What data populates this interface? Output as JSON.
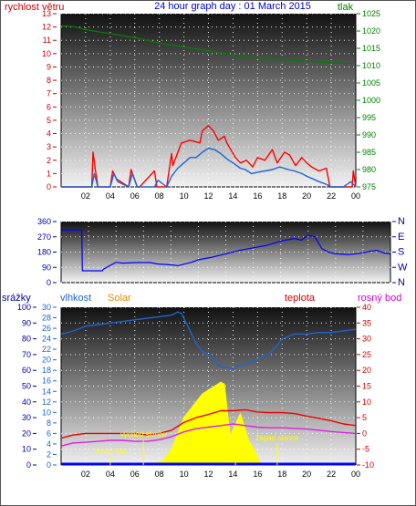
{
  "title": "24 hour graph day : 01 March 2015",
  "x_ticks": [
    "02",
    "04",
    "06",
    "08",
    "10",
    "12",
    "14",
    "16",
    "18",
    "20",
    "22",
    "00"
  ],
  "chart_data": [
    {
      "type": "line",
      "name": "wind-pressure",
      "left_label": "rychlost větru",
      "right_label": "tlak",
      "left_ticks": [
        "0",
        "1",
        "2",
        "3",
        "4",
        "5",
        "6",
        "7",
        "8",
        "9",
        "10",
        "11",
        "12",
        "13"
      ],
      "right_ticks": [
        "975",
        "980",
        "985",
        "990",
        "995",
        "1000",
        "1005",
        "1010",
        "1015",
        "1020",
        "1025"
      ],
      "left_range": [
        0,
        13
      ],
      "right_range": [
        975,
        1025
      ],
      "x_range": [
        0,
        24
      ],
      "series": [
        {
          "color": "#ff0000",
          "x": [
            0,
            2.5,
            2.6,
            2.8,
            3.0,
            4.0,
            4.2,
            4.5,
            5.5,
            5.7,
            6.2,
            6.4,
            7.6,
            7.8,
            8.6,
            9.0,
            9.1,
            9.8,
            10.5,
            11.3,
            11.5,
            12.0,
            12.4,
            12.8,
            13.3,
            13.5,
            14.2,
            14.6,
            15.1,
            15.6,
            16.0,
            16.6,
            17.2,
            17.6,
            18.2,
            18.6,
            19.1,
            19.6,
            20.0,
            20.4,
            21.0,
            21.6,
            21.9,
            22.2,
            23.0,
            23.7,
            23.8,
            24
          ],
          "values": [
            0,
            0,
            2.6,
            1.2,
            0,
            0,
            1.2,
            0.6,
            0,
            1.3,
            0,
            0,
            1.2,
            0,
            0,
            2.5,
            1.6,
            3.3,
            3.5,
            3.3,
            4.2,
            4.6,
            4.2,
            3.5,
            3.8,
            3.3,
            2.2,
            1.8,
            2.0,
            1.5,
            2.2,
            2.0,
            2.8,
            1.8,
            2.6,
            2.4,
            1.6,
            2.2,
            1.8,
            1.5,
            1.2,
            1.4,
            0,
            0,
            0,
            0,
            1.2,
            0
          ]
        },
        {
          "color": "#1e64d2",
          "x": [
            0,
            2.5,
            2.7,
            3.0,
            4.0,
            4.3,
            4.6,
            5.5,
            5.8,
            6.2,
            7.6,
            7.9,
            8.6,
            9.0,
            9.5,
            10.0,
            10.5,
            11.0,
            11.5,
            12.0,
            12.5,
            13.0,
            13.5,
            14.0,
            14.6,
            15.0,
            15.5,
            16.0,
            16.6,
            17.2,
            17.8,
            18.5,
            19.0,
            19.6,
            20.0,
            20.5,
            21.0,
            21.6,
            22.0,
            23.0,
            23.6,
            24
          ],
          "values": [
            0,
            0,
            1.0,
            0,
            0,
            1.0,
            0.4,
            0,
            1.0,
            0,
            0,
            0.5,
            0,
            0.8,
            1.4,
            1.8,
            2.2,
            2.2,
            2.6,
            2.9,
            2.8,
            2.5,
            2.1,
            1.8,
            1.4,
            1.3,
            1.0,
            1.1,
            1.2,
            1.3,
            1.5,
            1.3,
            1.2,
            1.0,
            0.8,
            0.6,
            0.4,
            0.2,
            0,
            0,
            0.4,
            0
          ]
        },
        {
          "color": "#008000",
          "axis": "right",
          "x": [
            0,
            1,
            2,
            4,
            6,
            8,
            10,
            12,
            14,
            16,
            18,
            20,
            22,
            24
          ],
          "values": [
            1021.5,
            1021.3,
            1020.4,
            1019.2,
            1018.1,
            1016.5,
            1015.4,
            1014.3,
            1013.0,
            1012.2,
            1011.7,
            1011.3,
            1010.8,
            1010.6
          ]
        }
      ]
    },
    {
      "type": "line",
      "name": "wind-direction",
      "left_ticks": [
        "0",
        "90",
        "180",
        "270",
        "360"
      ],
      "right_ticks": [
        "N",
        "W",
        "S",
        "E",
        "N"
      ],
      "left_range": [
        0,
        360
      ],
      "x_range": [
        0,
        24
      ],
      "series": [
        {
          "color": "#0000ff",
          "x": [
            0,
            1.5,
            1.55,
            3.0,
            3.1,
            4.0,
            4.5,
            5.5,
            6.5,
            7.0,
            8.0,
            8.5,
            9.5,
            10.0,
            11.0,
            12.0,
            13.0,
            14.0,
            15.0,
            16.0,
            17.0,
            17.5,
            18.0,
            18.5,
            19.0,
            19.5,
            20.0,
            21.0,
            22.0,
            22.5,
            23.0,
            23.5,
            24
          ],
          "values": [
            310,
            310,
            70,
            70,
            80,
            120,
            115,
            118,
            118,
            110,
            105,
            100,
            120,
            135,
            150,
            170,
            190,
            205,
            220,
            245,
            260,
            250,
            280,
            270,
            200,
            180,
            170,
            165,
            175,
            185,
            190,
            175,
            170
          ]
        }
      ]
    },
    {
      "type": "line",
      "name": "rain-humidity-solar-temperature",
      "top_labels": {
        "rain": "srážky",
        "humidity": "vlhkost",
        "solar": "Solar",
        "temperature": "teplota",
        "dewpoint": "rosný bod"
      },
      "rain_ticks": [
        "0",
        "10",
        "20",
        "30",
        "40",
        "50",
        "60",
        "70",
        "80",
        "90",
        "100"
      ],
      "humidity_ticks": [
        "0",
        "2",
        "4",
        "6",
        "8",
        "10",
        "12",
        "14",
        "16",
        "18",
        "20",
        "22",
        "24",
        "26",
        "28",
        "30"
      ],
      "temp_ticks": [
        "-10",
        "-5",
        "0",
        "5",
        "10",
        "15",
        "20",
        "25",
        "30",
        "35",
        "40"
      ],
      "humidity_range": [
        0,
        100
      ],
      "temp_range": [
        -10,
        40
      ],
      "x_range": [
        0,
        24
      ],
      "annotations": [
        {
          "text": "východ slunce",
          "x": 6.7,
          "color": "#ffff00"
        },
        {
          "text": "západ slunce",
          "x": 17.6,
          "color": "#ffff00"
        },
        {
          "text": "Moon Set",
          "x": 4.0,
          "color": "#ffff00"
        },
        {
          "text": "Moon Rise",
          "x": 14.2,
          "color": "#ffff00"
        }
      ],
      "series": [
        {
          "color": "#1e64d2",
          "axis": "humidity",
          "x": [
            0,
            1,
            2,
            3,
            4,
            5,
            6,
            7,
            8,
            9,
            9.5,
            9.8,
            10.0,
            10.5,
            11.0,
            11.5,
            12.0,
            12.5,
            13.0,
            13.5,
            14.0,
            14.5,
            15.0,
            16.0,
            17.0,
            17.5,
            18.0,
            19.0,
            20.0,
            21.0,
            22.0,
            23.0,
            24
          ],
          "values": [
            83,
            85,
            88,
            89,
            90,
            91,
            92,
            93,
            94,
            95,
            97,
            96,
            93,
            85,
            77,
            72,
            70,
            66,
            62,
            62,
            61,
            63,
            64,
            67,
            71,
            75,
            80,
            83,
            83,
            84,
            84,
            85,
            86
          ]
        },
        {
          "color": "#ee0000",
          "axis": "temp",
          "x": [
            0,
            1,
            2,
            3,
            4,
            5,
            6,
            7,
            8,
            9,
            10,
            11,
            12,
            13,
            14,
            15,
            16,
            17,
            18,
            19,
            20,
            21,
            22,
            23,
            24
          ],
          "values": [
            -1.5,
            -0.5,
            0,
            0,
            0,
            0,
            0,
            -0.5,
            0,
            1,
            3.5,
            5,
            6,
            7.2,
            7.2,
            7.5,
            6.8,
            6.6,
            6.6,
            6.3,
            5.5,
            4.8,
            4.0,
            3.0,
            2.5
          ]
        },
        {
          "color": "#e020e0",
          "axis": "temp",
          "x": [
            0,
            1,
            2,
            3,
            4,
            5,
            6,
            7,
            8,
            9,
            10,
            11,
            12,
            13,
            14,
            15,
            16,
            17,
            18,
            19,
            20,
            21,
            22,
            23,
            24
          ],
          "values": [
            -4,
            -3,
            -2.8,
            -2.5,
            -2.2,
            -2.2,
            -2.5,
            -2.5,
            -2,
            -1,
            0.5,
            1.5,
            2,
            2.5,
            3,
            2.5,
            2,
            1.8,
            1.8,
            1.6,
            1.4,
            1.0,
            0.6,
            0.3,
            0
          ]
        },
        {
          "color": "#ffff00",
          "fill": true,
          "axis": "solar",
          "x": [
            6.8,
            8.3,
            9.0,
            9.5,
            10.0,
            10.5,
            11.0,
            11.5,
            12.0,
            12.5,
            13.0,
            13.3,
            13.6,
            13.8,
            14.0,
            14.3,
            14.6,
            15.0,
            15.3,
            15.7,
            16.0,
            16.3
          ],
          "values": [
            0,
            1,
            4,
            8,
            12,
            14,
            16,
            18,
            19,
            20,
            21,
            20.5,
            12,
            7,
            9,
            11,
            13,
            9,
            6,
            4,
            2,
            0
          ]
        },
        {
          "color": "#0000ff",
          "axis": "rain",
          "x": [
            0,
            24
          ],
          "values": [
            0,
            0
          ]
        }
      ]
    }
  ]
}
